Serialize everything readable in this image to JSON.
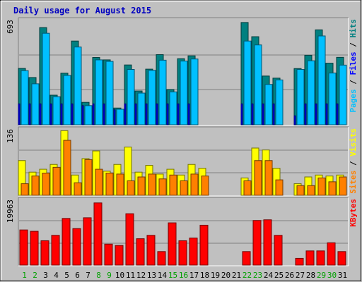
{
  "chart_data": {
    "type": "bar",
    "title": "Daily usage for August 2015",
    "categories": [
      "1",
      "2",
      "3",
      "4",
      "5",
      "6",
      "7",
      "8",
      "9",
      "10",
      "11",
      "12",
      "13",
      "14",
      "15",
      "16",
      "17",
      "18",
      "19",
      "20",
      "21",
      "22",
      "23",
      "24",
      "25",
      "26",
      "27",
      "28",
      "29",
      "30",
      "31"
    ],
    "weekend_days": [
      1,
      2,
      8,
      9,
      15,
      16,
      22,
      23,
      29,
      30
    ],
    "panels": [
      {
        "name": "hits-files-pages",
        "ymax_label": "693",
        "ymax": 693,
        "legend": [
          {
            "text": "Pages",
            "color": "#00c0ff"
          },
          {
            "text": " / ",
            "color": "#000000"
          },
          {
            "text": "Files",
            "color": "#0000ff"
          },
          {
            "text": " / ",
            "color": "#000000"
          },
          {
            "text": "Hits",
            "color": "#008080"
          }
        ],
        "series": [
          {
            "name": "Hits",
            "color": "#008080",
            "values": [
              377,
              316,
              650,
              198,
              345,
              560,
              150,
              450,
              434,
              112,
              400,
              226,
              372,
              469,
              236,
              442,
              461,
              0,
              0,
              0,
              0,
              684,
              589,
              326,
              312,
              0,
              376,
              465,
              635,
              412,
              451
            ]
          },
          {
            "name": "Files",
            "color": "#00c0ff",
            "values": [
              362,
              274,
              612,
              188,
              330,
              520,
              128,
              434,
              424,
              104,
              370,
              212,
              364,
              432,
              220,
              426,
              440,
              0,
              0,
              0,
              0,
              560,
              534,
              270,
              300,
              0,
              370,
              428,
              594,
              346,
              399
            ]
          },
          {
            "name": "Pages",
            "color": "#0000ff",
            "values": [
              140,
              140,
              140,
              140,
              140,
              140,
              128,
              140,
              140,
              100,
              140,
              140,
              140,
              140,
              140,
              140,
              140,
              0,
              0,
              0,
              0,
              140,
              140,
              140,
              140,
              0,
              60,
              140,
              140,
              140,
              140
            ]
          }
        ]
      },
      {
        "name": "visits-sites",
        "ymax_label": "136",
        "ymax": 136,
        "legend": [
          {
            "text": "Sites",
            "color": "#ff8000"
          },
          {
            "text": " / ",
            "color": "#000000"
          },
          {
            "text": "Visits",
            "color": "#ffff00"
          }
        ],
        "series": [
          {
            "name": "Visits",
            "color": "#ffff00",
            "values": [
              72,
              48,
              54,
              64,
              134,
              42,
              76,
              92,
              50,
              64,
              100,
              48,
              62,
              44,
              54,
              42,
              64,
              56,
              0,
              0,
              0,
              36,
              98,
              94,
              56,
              0,
              24,
              38,
              42,
              40,
              42
            ]
          },
          {
            "name": "Sites",
            "color": "#ff8000",
            "values": [
              24,
              40,
              46,
              58,
              114,
              26,
              74,
              54,
              46,
              44,
              30,
              38,
              44,
              34,
              42,
              30,
              44,
              40,
              0,
              0,
              0,
              30,
              72,
              72,
              32,
              0,
              20,
              20,
              36,
              28,
              38
            ]
          }
        ]
      },
      {
        "name": "kbytes",
        "ymax_label": "19963",
        "ymax": 19963,
        "legend": [
          {
            "text": "KBytes",
            "color": "#ff0000"
          }
        ],
        "series": [
          {
            "name": "KBytes",
            "color": "#ff0000",
            "values": [
              10816,
              10400,
              7488,
              9152,
              14352,
              11232,
              14560,
              19136,
              6448,
              6032,
              15808,
              8112,
              9152,
              4160,
              13000,
              7488,
              8320,
              12272,
              0,
              0,
              0,
              4160,
              13728,
              13936,
              9152,
              0,
              2080,
              4368,
              4368,
              6864,
              4160
            ]
          }
        ]
      }
    ]
  }
}
